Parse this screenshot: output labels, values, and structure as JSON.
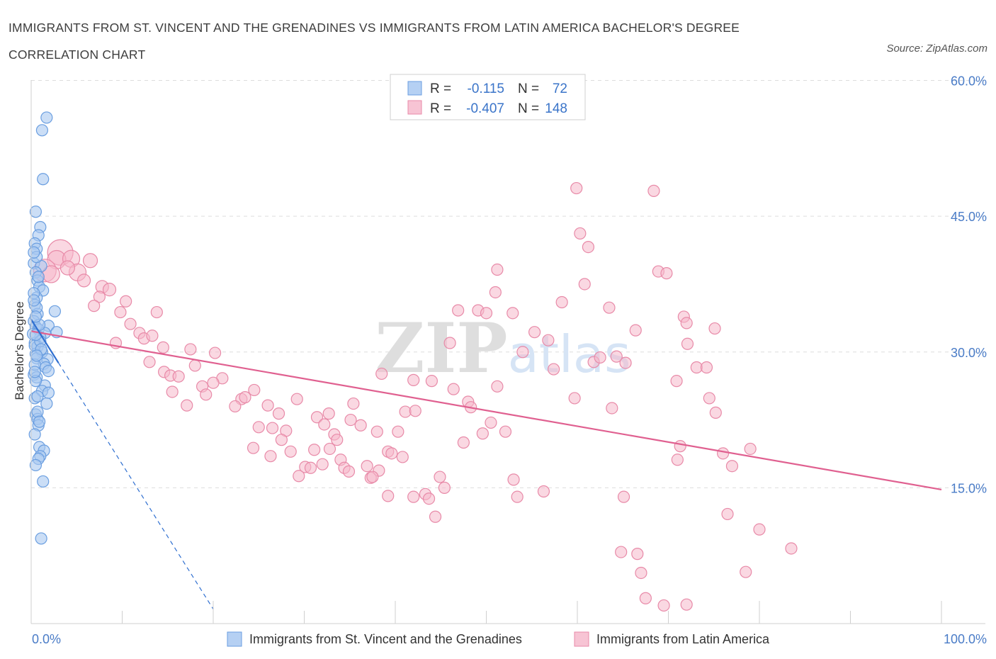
{
  "title": "IMMIGRANTS FROM ST. VINCENT AND THE GRENADINES VS IMMIGRANTS FROM LATIN AMERICA BACHELOR'S DEGREE CORRELATION CHART",
  "source": "Source: ZipAtlas.com",
  "watermark": "ZIPatlas",
  "colors": {
    "blue_fill": "#a8c8f0",
    "blue_stroke": "#6a9ee0",
    "blue_line": "#2f6fd0",
    "pink_fill": "#f5b8ca",
    "pink_stroke": "#e88aa8",
    "pink_line": "#e06090",
    "grid": "#dddddd",
    "axis_label": "#4a7cc7"
  },
  "legend": {
    "rows": [
      {
        "r_label": "R =",
        "r_value": "-0.115",
        "n_label": "N =",
        "n_value": "72"
      },
      {
        "r_label": "R =",
        "r_value": "-0.407",
        "n_label": "N =",
        "n_value": "148"
      }
    ]
  },
  "chart_data": {
    "type": "scatter",
    "ylabel": "Bachelor's Degree",
    "xlim": [
      0,
      100
    ],
    "ylim": [
      0,
      62
    ],
    "x_tick_labels": [
      "0.0%",
      "100.0%"
    ],
    "y_ticks": [
      {
        "value": 15,
        "label": "15.0%"
      },
      {
        "value": 30,
        "label": "30.0%"
      },
      {
        "value": 45,
        "label": "45.0%"
      },
      {
        "value": 60,
        "label": "60.0%"
      }
    ],
    "grid": true,
    "series": [
      {
        "name": "Immigrants from St. Vincent and the Grenadines",
        "color": "blue",
        "trend": {
          "x0": 0,
          "y0": 33.6,
          "x1": 3,
          "y1": 28.8,
          "dashed_to_x": 20
        },
        "points": [
          [
            1.7,
            55.9
          ],
          [
            1.2,
            54.5
          ],
          [
            1.3,
            49.1
          ],
          [
            0.5,
            45.5
          ],
          [
            1.0,
            43.8
          ],
          [
            0.8,
            42.9
          ],
          [
            0.4,
            42.0
          ],
          [
            0.6,
            41.4
          ],
          [
            0.3,
            39.8
          ],
          [
            1.1,
            39.5
          ],
          [
            0.5,
            38.8
          ],
          [
            0.7,
            37.9
          ],
          [
            0.9,
            37.2
          ],
          [
            1.3,
            36.8
          ],
          [
            0.6,
            36.0
          ],
          [
            0.4,
            35.2
          ],
          [
            2.6,
            34.5
          ],
          [
            0.7,
            34.2
          ],
          [
            0.3,
            33.4
          ],
          [
            0.5,
            32.8
          ],
          [
            0.8,
            32.5
          ],
          [
            1.9,
            32.9
          ],
          [
            2.8,
            32.2
          ],
          [
            1.5,
            32.1
          ],
          [
            1.0,
            31.6
          ],
          [
            0.4,
            31.0
          ],
          [
            0.7,
            30.6
          ],
          [
            1.2,
            30.0
          ],
          [
            0.5,
            29.8
          ],
          [
            0.6,
            29.3
          ],
          [
            1.8,
            29.2
          ],
          [
            1.4,
            28.7
          ],
          [
            1.6,
            28.3
          ],
          [
            1.9,
            27.9
          ],
          [
            0.3,
            27.5
          ],
          [
            0.6,
            27.2
          ],
          [
            1.5,
            26.3
          ],
          [
            1.2,
            25.7
          ],
          [
            1.9,
            25.5
          ],
          [
            0.4,
            24.9
          ],
          [
            1.7,
            24.3
          ],
          [
            0.5,
            23.1
          ],
          [
            0.7,
            22.6
          ],
          [
            0.8,
            21.9
          ],
          [
            0.4,
            20.9
          ],
          [
            0.9,
            19.5
          ],
          [
            1.4,
            19.1
          ],
          [
            1.0,
            18.5
          ],
          [
            0.8,
            18.2
          ],
          [
            0.5,
            17.5
          ],
          [
            1.3,
            15.7
          ],
          [
            1.1,
            9.4
          ],
          [
            0.6,
            40.5
          ],
          [
            0.4,
            30.7
          ],
          [
            0.9,
            33.0
          ],
          [
            0.3,
            36.5
          ],
          [
            0.5,
            26.8
          ],
          [
            0.7,
            23.4
          ],
          [
            0.2,
            32.0
          ],
          [
            0.4,
            28.6
          ],
          [
            1.0,
            31.2
          ],
          [
            0.6,
            34.9
          ],
          [
            0.8,
            38.3
          ],
          [
            0.3,
            41.0
          ],
          [
            0.5,
            33.9
          ],
          [
            1.1,
            30.3
          ],
          [
            0.4,
            27.8
          ],
          [
            0.7,
            25.1
          ],
          [
            0.9,
            22.3
          ],
          [
            0.3,
            35.7
          ],
          [
            0.6,
            29.6
          ],
          [
            0.5,
            31.9
          ]
        ]
      },
      {
        "name": "Immigrants from Latin America",
        "color": "pink",
        "trend": {
          "x0": 0,
          "y0": 32.3,
          "x1": 100,
          "y1": 14.8
        },
        "points": [
          [
            3.2,
            41.0,
            18
          ],
          [
            2.8,
            40.2,
            13
          ],
          [
            1.5,
            39.0,
            16
          ],
          [
            2.2,
            38.6,
            12
          ],
          [
            4.4,
            40.3,
            12
          ],
          [
            5.1,
            38.8,
            12
          ],
          [
            6.5,
            40.1,
            10
          ],
          [
            4.0,
            39.3,
            10
          ],
          [
            5.8,
            37.9,
            9
          ],
          [
            7.8,
            37.2,
            9
          ],
          [
            8.6,
            36.9,
            9
          ],
          [
            7.5,
            36.1,
            8
          ],
          [
            6.9,
            35.1,
            8
          ],
          [
            10.4,
            35.6,
            8
          ],
          [
            9.8,
            34.4,
            8
          ],
          [
            13.8,
            34.4,
            8
          ],
          [
            10.9,
            33.1,
            8
          ],
          [
            11.9,
            32.1,
            8
          ],
          [
            12.4,
            31.5,
            8
          ],
          [
            13.3,
            31.8,
            8
          ],
          [
            9.3,
            31.0,
            8
          ],
          [
            14.5,
            30.5,
            8
          ],
          [
            17.5,
            30.3,
            8
          ],
          [
            13.0,
            28.9,
            8
          ],
          [
            18.0,
            28.5,
            8
          ],
          [
            14.6,
            27.8,
            8
          ],
          [
            15.3,
            27.4,
            8
          ],
          [
            16.2,
            27.3,
            8
          ],
          [
            18.8,
            26.2,
            8
          ],
          [
            20.2,
            29.9,
            8
          ],
          [
            21.0,
            27.1,
            8
          ],
          [
            20.0,
            26.6,
            8
          ],
          [
            23.1,
            24.8,
            8
          ],
          [
            22.4,
            24.0,
            8
          ],
          [
            19.2,
            25.3,
            8
          ],
          [
            15.5,
            25.6,
            8
          ],
          [
            17.1,
            24.1,
            8
          ],
          [
            23.5,
            25.0,
            8
          ],
          [
            24.5,
            25.8,
            8
          ],
          [
            26.0,
            24.1,
            8
          ],
          [
            27.2,
            23.2,
            8
          ],
          [
            25.0,
            21.7,
            8
          ],
          [
            24.4,
            19.4,
            8
          ],
          [
            26.3,
            18.5,
            8
          ],
          [
            26.5,
            21.6,
            8
          ],
          [
            28.0,
            21.3,
            8
          ],
          [
            27.5,
            20.3,
            8
          ],
          [
            29.2,
            24.8,
            8
          ],
          [
            28.5,
            19.0,
            8
          ],
          [
            30.1,
            17.3,
            8
          ],
          [
            29.4,
            16.3,
            8
          ],
          [
            30.7,
            17.2,
            8
          ],
          [
            31.1,
            19.2,
            8
          ],
          [
            31.4,
            22.8,
            8
          ],
          [
            32.2,
            22.0,
            8
          ],
          [
            32.0,
            17.6,
            8
          ],
          [
            32.7,
            23.2,
            8
          ],
          [
            32.8,
            19.3,
            8
          ],
          [
            33.3,
            20.9,
            8
          ],
          [
            33.6,
            20.3,
            8
          ],
          [
            34.0,
            18.1,
            8
          ],
          [
            34.4,
            17.2,
            8
          ],
          [
            34.9,
            16.8,
            8
          ],
          [
            35.1,
            22.5,
            8
          ],
          [
            35.4,
            24.3,
            8
          ],
          [
            36.2,
            21.9,
            8
          ],
          [
            36.9,
            17.4,
            8
          ],
          [
            37.3,
            16.1,
            8
          ],
          [
            38.0,
            21.2,
            8
          ],
          [
            38.5,
            27.6,
            8
          ],
          [
            38.2,
            16.9,
            8
          ],
          [
            39.2,
            19.0,
            8
          ],
          [
            39.6,
            18.8,
            8
          ],
          [
            39.2,
            14.1,
            8
          ],
          [
            40.3,
            21.2,
            8
          ],
          [
            40.8,
            18.4,
            8
          ],
          [
            41.1,
            23.4,
            8
          ],
          [
            42.0,
            26.9,
            8
          ],
          [
            42.0,
            14.0,
            8
          ],
          [
            42.2,
            23.5,
            8
          ],
          [
            43.3,
            14.3,
            8
          ],
          [
            43.7,
            13.8,
            8
          ],
          [
            44.4,
            11.8,
            8
          ],
          [
            44.9,
            16.2,
            8
          ],
          [
            45.4,
            15.0,
            8
          ],
          [
            46.4,
            25.9,
            8
          ],
          [
            46.9,
            34.6,
            8
          ],
          [
            47.5,
            20.0,
            8
          ],
          [
            48.0,
            24.5,
            8
          ],
          [
            48.3,
            23.9,
            8
          ],
          [
            49.1,
            34.6,
            8
          ],
          [
            50.0,
            34.3,
            8
          ],
          [
            49.6,
            21.0,
            8
          ],
          [
            50.5,
            22.2,
            8
          ],
          [
            51.2,
            26.2,
            8
          ],
          [
            51.0,
            36.6,
            8
          ],
          [
            51.2,
            39.1,
            8
          ],
          [
            52.1,
            21.2,
            8
          ],
          [
            52.9,
            34.3,
            8
          ],
          [
            53.0,
            15.9,
            8
          ],
          [
            53.4,
            14.0,
            8
          ],
          [
            54.0,
            30.0,
            8
          ],
          [
            56.8,
            31.3,
            8
          ],
          [
            56.3,
            14.6,
            8
          ],
          [
            57.4,
            28.1,
            8
          ],
          [
            59.7,
            24.9,
            8
          ],
          [
            59.9,
            48.1,
            8
          ],
          [
            60.3,
            43.1,
            8
          ],
          [
            61.2,
            41.6,
            8
          ],
          [
            61.8,
            28.9,
            8
          ],
          [
            62.5,
            29.4,
            8
          ],
          [
            63.5,
            34.9,
            8
          ],
          [
            64.3,
            29.5,
            8
          ],
          [
            65.3,
            28.8,
            8
          ],
          [
            64.8,
            7.9,
            8
          ],
          [
            65.1,
            14.0,
            8
          ],
          [
            66.4,
            32.4,
            8
          ],
          [
            66.6,
            7.7,
            8
          ],
          [
            67.0,
            5.6,
            8
          ],
          [
            67.5,
            2.8,
            8
          ],
          [
            68.9,
            38.9,
            8
          ],
          [
            69.8,
            38.7,
            8
          ],
          [
            71.7,
            33.9,
            8
          ],
          [
            72.0,
            33.2,
            8
          ],
          [
            70.9,
            26.8,
            8
          ],
          [
            71.3,
            19.6,
            8
          ],
          [
            71.0,
            18.1,
            8
          ],
          [
            72.1,
            30.9,
            8
          ],
          [
            73.1,
            28.3,
            8
          ],
          [
            74.5,
            24.9,
            8
          ],
          [
            75.1,
            32.6,
            8
          ],
          [
            75.2,
            23.3,
            8
          ],
          [
            76.0,
            18.8,
            8
          ],
          [
            77.0,
            17.4,
            8
          ],
          [
            76.5,
            12.1,
            8
          ],
          [
            78.5,
            5.7,
            8
          ],
          [
            79.0,
            19.3,
            8
          ],
          [
            80.0,
            10.4,
            8
          ],
          [
            83.5,
            8.3,
            8
          ],
          [
            68.4,
            47.8,
            8
          ],
          [
            74.2,
            28.3,
            8
          ],
          [
            63.8,
            23.8,
            8
          ],
          [
            60.8,
            37.5,
            8
          ],
          [
            58.3,
            35.5,
            8
          ],
          [
            55.3,
            32.2,
            8
          ],
          [
            44.0,
            26.8,
            8
          ],
          [
            37.5,
            16.2,
            8
          ],
          [
            69.5,
            2.0,
            8
          ],
          [
            72.0,
            2.1,
            8
          ],
          [
            46.0,
            31.0,
            8
          ]
        ]
      }
    ]
  },
  "bottom_legend": [
    {
      "label": "Immigrants from St. Vincent and the Grenadines",
      "color": "blue"
    },
    {
      "label": "Immigrants from Latin America",
      "color": "pink"
    }
  ]
}
